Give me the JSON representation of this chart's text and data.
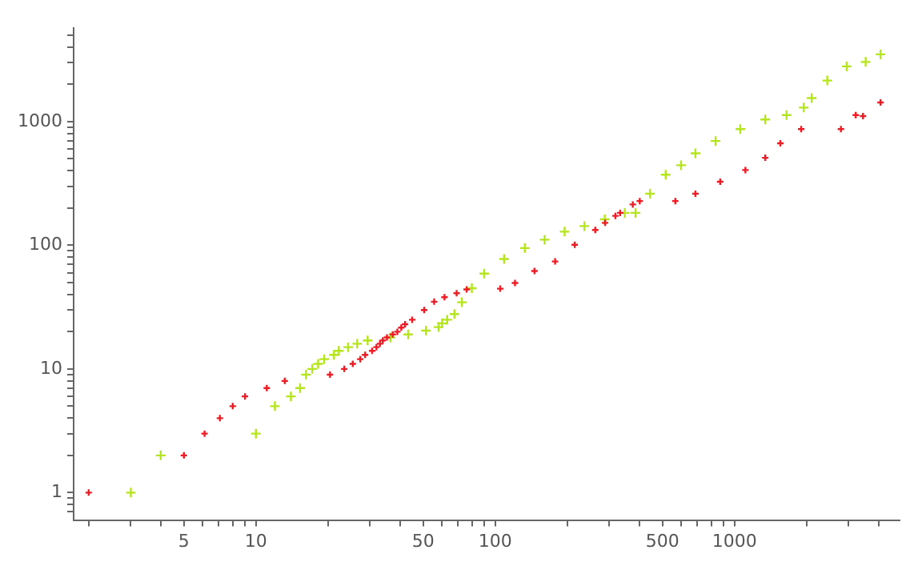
{
  "chart_data": {
    "type": "scatter",
    "log": "xy",
    "marker": "cross",
    "xlim": [
      1.73,
      4900
    ],
    "ylim": [
      0.63,
      5700
    ],
    "xticks": [
      {
        "value": 2,
        "label": null
      },
      {
        "value": 3,
        "label": null
      },
      {
        "value": 4,
        "label": null
      },
      5,
      {
        "value": 6,
        "label": null
      },
      {
        "value": 7,
        "label": null
      },
      {
        "value": 8,
        "label": null
      },
      {
        "value": 9,
        "label": null
      },
      10,
      {
        "value": 20,
        "label": null
      },
      {
        "value": 30,
        "label": null
      },
      {
        "value": 40,
        "label": null
      },
      50,
      {
        "value": 60,
        "label": null
      },
      {
        "value": 70,
        "label": null
      },
      {
        "value": 80,
        "label": null
      },
      {
        "value": 90,
        "label": null
      },
      100,
      {
        "value": 200,
        "label": null
      },
      {
        "value": 300,
        "label": null
      },
      {
        "value": 400,
        "label": null
      },
      500,
      {
        "value": 600,
        "label": null
      },
      {
        "value": 700,
        "label": null
      },
      {
        "value": 800,
        "label": null
      },
      {
        "value": 900,
        "label": null
      },
      1000,
      {
        "value": 2000,
        "label": null
      },
      {
        "value": 3000,
        "label": null
      },
      {
        "value": 4000,
        "label": null
      }
    ],
    "yticks": [
      {
        "value": 0.7,
        "label": null
      },
      {
        "value": 0.8,
        "label": null
      },
      {
        "value": 0.9,
        "label": null
      },
      1,
      {
        "value": 2,
        "label": null
      },
      {
        "value": 3,
        "label": null
      },
      {
        "value": 4,
        "label": null
      },
      {
        "value": 5,
        "label": null
      },
      {
        "value": 6,
        "label": null
      },
      {
        "value": 7,
        "label": null
      },
      {
        "value": 8,
        "label": null
      },
      {
        "value": 9,
        "label": null
      },
      10,
      {
        "value": 20,
        "label": null
      },
      {
        "value": 30,
        "label": null
      },
      {
        "value": 40,
        "label": null
      },
      {
        "value": 50,
        "label": null
      },
      {
        "value": 60,
        "label": null
      },
      {
        "value": 70,
        "label": null
      },
      {
        "value": 80,
        "label": null
      },
      {
        "value": 90,
        "label": null
      },
      100,
      {
        "value": 200,
        "label": null
      },
      {
        "value": 300,
        "label": null
      },
      {
        "value": 400,
        "label": null
      },
      {
        "value": 500,
        "label": null
      },
      {
        "value": 600,
        "label": null
      },
      {
        "value": 700,
        "label": null
      },
      {
        "value": 800,
        "label": null
      },
      {
        "value": 900,
        "label": null
      },
      1000,
      {
        "value": 2000,
        "label": null
      },
      {
        "value": 3000,
        "label": null
      },
      {
        "value": 4000,
        "label": null
      },
      {
        "value": 5000,
        "label": null
      }
    ],
    "series": [
      {
        "color": "#ee1c24",
        "x": [
          2,
          5,
          6.1,
          7.07,
          8,
          9,
          11.1,
          13.2,
          20.4,
          23.4,
          25.4,
          27.3,
          28.6,
          30.6,
          31.9,
          33,
          33.9,
          35.3,
          37.3,
          39,
          40.5,
          42,
          45,
          50.5,
          55.6,
          61.4,
          69,
          76,
          105,
          121,
          146,
          178,
          215,
          262,
          288,
          318,
          333,
          376,
          402,
          566,
          687,
          872,
          1111,
          1345,
          1556,
          1900,
          2786,
          3214,
          3445,
          4080
        ],
        "values": [
          1,
          2,
          3,
          4,
          5,
          6,
          7,
          8,
          9,
          10,
          11,
          12,
          13,
          14,
          15,
          16,
          17,
          18,
          19,
          20,
          21.6,
          23,
          25,
          30,
          35,
          38,
          41,
          44,
          44.6,
          49.6,
          62,
          74,
          101,
          133,
          152,
          173,
          183,
          214,
          228,
          228,
          261,
          327,
          406,
          510,
          668,
          870,
          870,
          1130,
          1110,
          1430
        ]
      },
      {
        "color": "#b5e61d",
        "x": [
          3,
          4,
          10,
          12,
          14,
          15.3,
          16.2,
          17.2,
          18.2,
          19.3,
          21.2,
          22.2,
          24.3,
          26.5,
          29.3,
          36.5,
          43.3,
          51.4,
          58,
          60,
          63,
          67.6,
          72.6,
          79.9,
          90,
          109,
          133,
          161,
          195,
          236,
          287,
          348,
          386,
          444,
          516,
          598,
          687,
          834,
          1058,
          1345,
          1651,
          1949,
          2103,
          2443,
          2945,
          3535,
          4080
        ],
        "values": [
          1,
          2,
          3,
          5,
          6,
          7,
          9,
          10,
          11,
          12,
          13,
          14,
          15,
          16,
          17,
          18,
          19,
          20.4,
          21.8,
          23.4,
          25,
          27.8,
          34.6,
          45,
          59,
          77.6,
          95,
          111,
          129,
          143,
          162,
          183,
          183,
          261,
          372,
          444,
          555,
          697,
          870,
          1040,
          1130,
          1300,
          1550,
          2150,
          2800,
          3040,
          3500
        ]
      }
    ]
  }
}
